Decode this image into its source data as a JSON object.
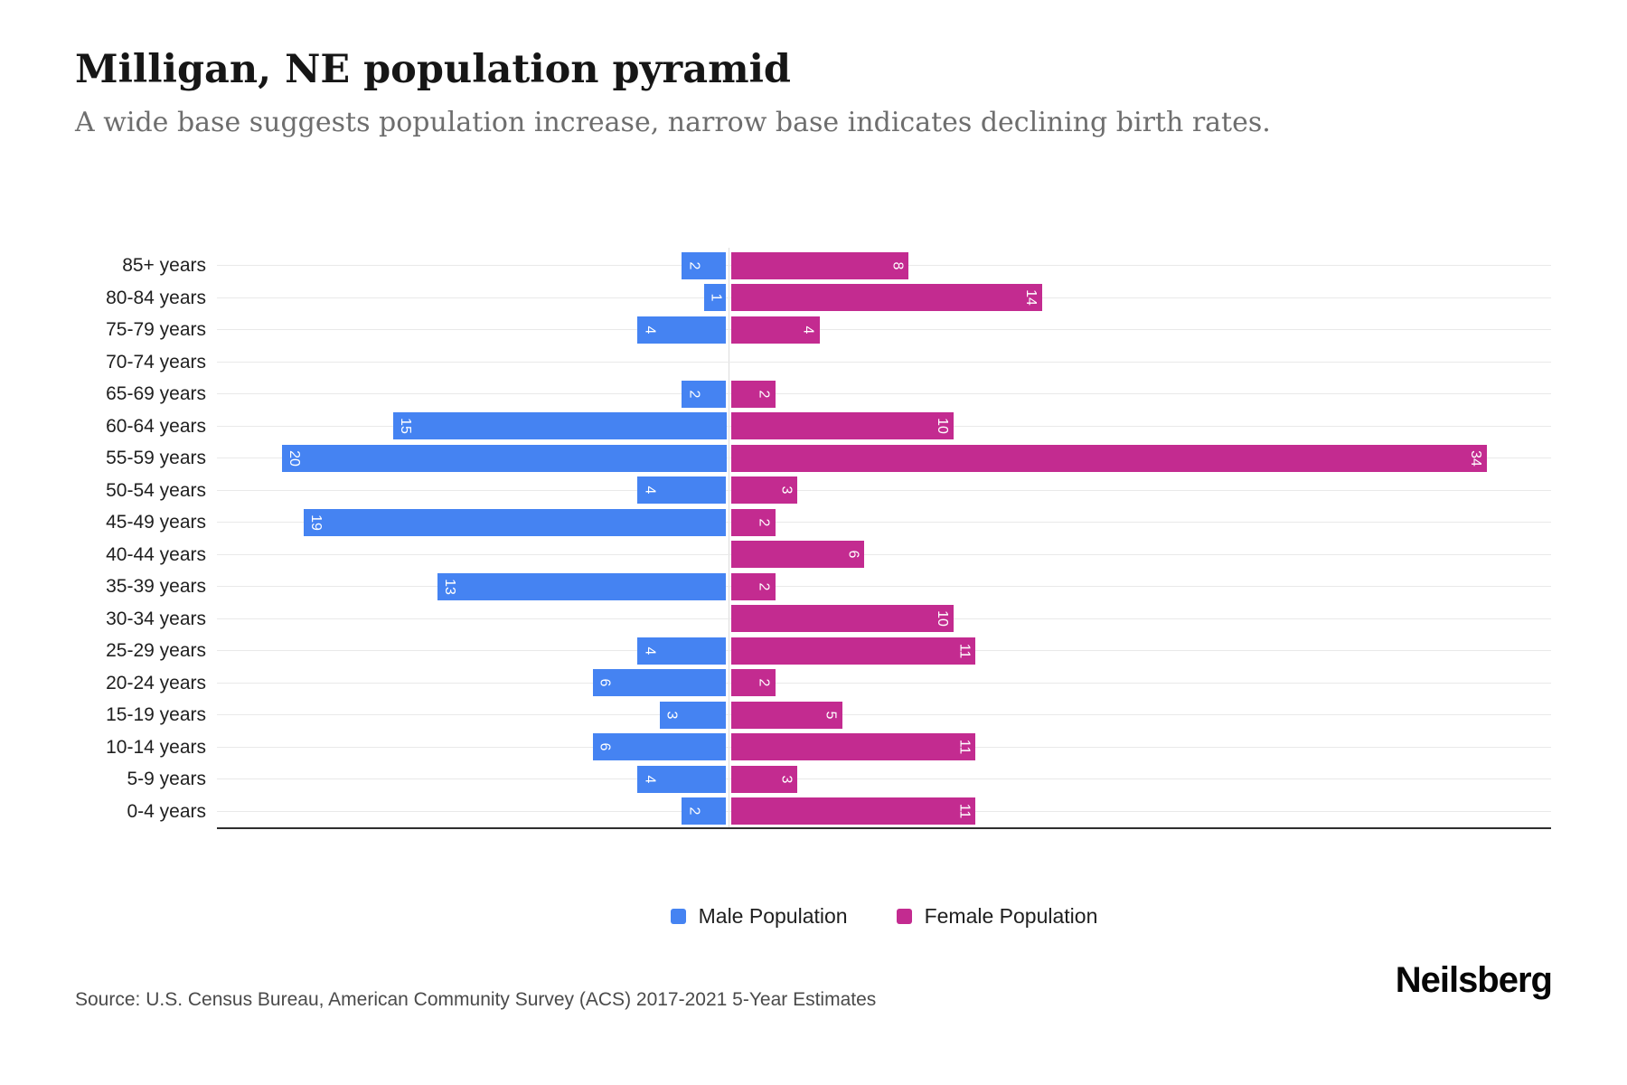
{
  "header": {
    "title": "Milligan, NE population pyramid",
    "subtitle": "A wide base suggests population increase, narrow base indicates declining birth rates."
  },
  "chart_data": {
    "type": "bar",
    "variant": "population-pyramid-horizontal",
    "title": "Milligan, NE population pyramid",
    "categories": [
      "85+ years",
      "80-84 years",
      "75-79 years",
      "70-74 years",
      "65-69 years",
      "60-64 years",
      "55-59 years",
      "50-54 years",
      "45-49 years",
      "40-44 years",
      "35-39 years",
      "30-34 years",
      "25-29 years",
      "20-24 years",
      "15-19 years",
      "10-14 years",
      "5-9 years",
      "0-4 years"
    ],
    "series": [
      {
        "name": "Male Population",
        "side": "left",
        "color": "#4583F2",
        "values": [
          2,
          1,
          4,
          0,
          2,
          15,
          20,
          4,
          19,
          0,
          13,
          0,
          4,
          6,
          3,
          6,
          4,
          2
        ]
      },
      {
        "name": "Female Population",
        "side": "right",
        "color": "#C32B90",
        "values": [
          8,
          14,
          4,
          0,
          2,
          10,
          34,
          3,
          2,
          6,
          2,
          10,
          11,
          2,
          5,
          11,
          3,
          11
        ]
      }
    ],
    "value_labels": "inside bar ends, rotated 90deg, hidden when value is 0",
    "axes": {
      "left_max": 23,
      "right_max": 37,
      "tick_labels_shown": false,
      "grid": "horizontal-light"
    },
    "legend_position": "bottom-center"
  },
  "footer": {
    "source": "Source: U.S. Census Bureau, American Community Survey (ACS) 2017-2021 5-Year Estimates",
    "brand": "Neilsberg"
  }
}
